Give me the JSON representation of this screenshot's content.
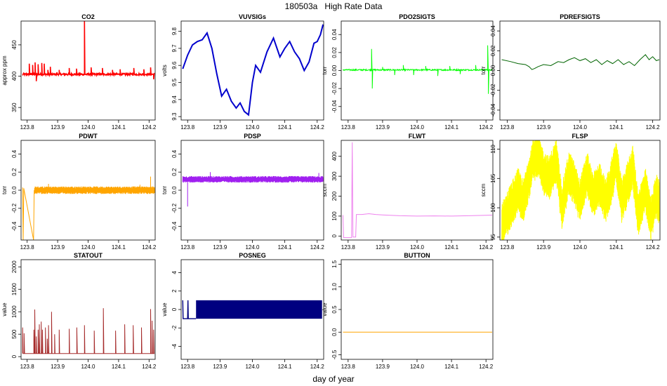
{
  "figure": {
    "title": "180503a   High Rate Data",
    "xlabel": "day of year"
  },
  "chart_data": [
    {
      "type": "line",
      "title": "CO2",
      "ylabel": "approx ppm",
      "color": "#ff0000",
      "xlim": [
        123.78,
        124.22
      ],
      "ylim": [
        330,
        488
      ],
      "xticks": [
        123.8,
        123.9,
        124.0,
        124.1,
        124.2
      ],
      "yticks": [
        350,
        400,
        450
      ],
      "pattern": "spiky",
      "base": 403,
      "noise": 1.5,
      "spikes": [
        [
          123.807,
          420
        ],
        [
          123.818,
          418
        ],
        [
          123.826,
          422
        ],
        [
          123.83,
          392
        ],
        [
          123.836,
          419
        ],
        [
          123.848,
          421
        ],
        [
          123.856,
          420
        ],
        [
          123.868,
          410
        ],
        [
          123.876,
          415
        ],
        [
          123.905,
          410
        ],
        [
          123.938,
          413
        ],
        [
          123.962,
          412
        ],
        [
          123.988,
          488
        ],
        [
          124.01,
          414
        ],
        [
          124.047,
          413
        ],
        [
          124.08,
          410
        ],
        [
          124.105,
          411
        ],
        [
          124.15,
          413
        ],
        [
          124.183,
          411
        ],
        [
          124.205,
          414
        ],
        [
          124.215,
          395
        ]
      ]
    },
    {
      "type": "line",
      "title": "VUVSIGs",
      "ylabel": "volts",
      "color": "#0000cd",
      "xlim": [
        123.78,
        124.22
      ],
      "ylim": [
        9.28,
        9.86
      ],
      "xticks": [
        123.8,
        123.9,
        124.0,
        124.1,
        124.2
      ],
      "yticks": [
        9.3,
        9.4,
        9.5,
        9.6,
        9.7,
        9.8
      ],
      "pattern": "smooth",
      "points": [
        [
          123.785,
          9.58
        ],
        [
          123.8,
          9.66
        ],
        [
          123.815,
          9.72
        ],
        [
          123.83,
          9.74
        ],
        [
          123.845,
          9.75
        ],
        [
          123.86,
          9.79
        ],
        [
          123.875,
          9.7
        ],
        [
          123.89,
          9.55
        ],
        [
          123.905,
          9.42
        ],
        [
          123.92,
          9.46
        ],
        [
          123.935,
          9.39
        ],
        [
          123.95,
          9.35
        ],
        [
          123.962,
          9.38
        ],
        [
          123.975,
          9.33
        ],
        [
          123.988,
          9.31
        ],
        [
          124.0,
          9.5
        ],
        [
          124.01,
          9.6
        ],
        [
          124.025,
          9.56
        ],
        [
          124.045,
          9.68
        ],
        [
          124.065,
          9.76
        ],
        [
          124.085,
          9.65
        ],
        [
          124.1,
          9.7
        ],
        [
          124.115,
          9.74
        ],
        [
          124.13,
          9.68
        ],
        [
          124.145,
          9.64
        ],
        [
          124.16,
          9.57
        ],
        [
          124.175,
          9.62
        ],
        [
          124.19,
          9.73
        ],
        [
          124.2,
          9.74
        ],
        [
          124.21,
          9.78
        ],
        [
          124.218,
          9.84
        ]
      ]
    },
    {
      "type": "line",
      "title": "PDO2SIGTS",
      "ylabel": "torr",
      "color": "#00ff00",
      "xlim": [
        123.78,
        124.22
      ],
      "ylim": [
        -0.055,
        0.055
      ],
      "xticks": [
        123.8,
        123.9,
        124.0,
        124.1,
        124.2
      ],
      "yticks": [
        -0.04,
        -0.02,
        0.0,
        0.02,
        0.04
      ],
      "pattern": "noise",
      "base": 0.0007,
      "noise": 0.0008,
      "spikes": [
        [
          123.868,
          0.024
        ],
        [
          123.87,
          -0.02
        ],
        [
          123.9,
          0.004
        ],
        [
          123.935,
          -0.005
        ],
        [
          123.96,
          0.006
        ],
        [
          123.99,
          -0.005
        ],
        [
          124.025,
          0.005
        ],
        [
          124.06,
          -0.006
        ],
        [
          124.095,
          0.005
        ],
        [
          124.125,
          -0.004
        ],
        [
          124.17,
          0.006
        ],
        [
          124.205,
          0.028
        ],
        [
          124.207,
          -0.026
        ]
      ]
    },
    {
      "type": "line",
      "title": "PDREFSIGTS",
      "ylabel": "torr",
      "color": "#006400",
      "xlim": [
        123.78,
        124.22
      ],
      "ylim": [
        -0.05,
        0.05
      ],
      "xticks": [
        123.8,
        123.9,
        124.0,
        124.1,
        124.2
      ],
      "yticks": [
        -0.04,
        -0.02,
        0.0,
        0.02,
        0.04
      ],
      "pattern": "smooth",
      "points": [
        [
          123.785,
          0.011
        ],
        [
          123.81,
          0.009
        ],
        [
          123.83,
          0.007
        ],
        [
          123.85,
          0.006
        ],
        [
          123.86,
          0.004
        ],
        [
          123.868,
          0.001
        ],
        [
          123.875,
          0.002
        ],
        [
          123.885,
          0.004
        ],
        [
          123.9,
          0.006
        ],
        [
          123.92,
          0.005
        ],
        [
          123.94,
          0.009
        ],
        [
          123.955,
          0.008
        ],
        [
          123.97,
          0.011
        ],
        [
          123.985,
          0.013
        ],
        [
          124.0,
          0.01
        ],
        [
          124.015,
          0.012
        ],
        [
          124.03,
          0.008
        ],
        [
          124.045,
          0.011
        ],
        [
          124.06,
          0.006
        ],
        [
          124.075,
          0.01
        ],
        [
          124.09,
          0.007
        ],
        [
          124.105,
          0.011
        ],
        [
          124.12,
          0.006
        ],
        [
          124.135,
          0.009
        ],
        [
          124.15,
          0.005
        ],
        [
          124.165,
          0.011
        ],
        [
          124.18,
          0.016
        ],
        [
          124.19,
          0.011
        ],
        [
          124.2,
          0.014
        ],
        [
          124.21,
          0.01
        ],
        [
          124.218,
          0.011
        ]
      ]
    },
    {
      "type": "line",
      "title": "PDWT",
      "ylabel": "torr",
      "color": "#ffa500",
      "xlim": [
        123.78,
        124.22
      ],
      "ylim": [
        -0.55,
        0.55
      ],
      "xticks": [
        123.8,
        123.9,
        124.0,
        124.1,
        124.2
      ],
      "yticks": [
        -0.4,
        -0.2,
        0.0,
        0.2,
        0.4
      ],
      "pattern": "band",
      "base": 0.0,
      "noise": 0.035,
      "x0": 123.824,
      "prefix": [
        [
          123.785,
          0.03
        ],
        [
          123.787,
          -0.55
        ],
        [
          123.789,
          0.02
        ],
        [
          123.821,
          -0.55
        ],
        [
          123.823,
          0.0
        ]
      ],
      "spikes": [
        [
          123.87,
          0.07
        ],
        [
          124.17,
          0.06
        ],
        [
          124.205,
          0.15
        ]
      ]
    },
    {
      "type": "line",
      "title": "PDSP",
      "ylabel": "torr",
      "color": "#a020f0",
      "xlim": [
        123.78,
        124.22
      ],
      "ylim": [
        -0.55,
        0.55
      ],
      "xticks": [
        123.8,
        123.9,
        124.0,
        124.1,
        124.2
      ],
      "yticks": [
        -0.4,
        -0.2,
        0.0,
        0.2,
        0.4
      ],
      "pattern": "band",
      "base": 0.12,
      "noise": 0.03,
      "x0": 123.785,
      "prefix": [],
      "spikes": [
        [
          123.8,
          -0.18
        ],
        [
          123.87,
          0.2
        ],
        [
          124.205,
          0.19
        ]
      ]
    },
    {
      "type": "line",
      "title": "FLWT",
      "ylabel": "sccm",
      "color": "#ee82ee",
      "xlim": [
        123.78,
        124.22
      ],
      "ylim": [
        -20,
        480
      ],
      "xticks": [
        123.8,
        123.9,
        124.0,
        124.1,
        124.2
      ],
      "yticks": [
        0,
        100,
        200,
        300,
        400
      ],
      "pattern": "smooth",
      "points": [
        [
          123.785,
          105
        ],
        [
          123.787,
          -8
        ],
        [
          123.81,
          -8
        ],
        [
          123.812,
          470
        ],
        [
          123.814,
          -5
        ],
        [
          123.822,
          -5
        ],
        [
          123.824,
          108
        ],
        [
          123.84,
          108
        ],
        [
          123.86,
          112
        ],
        [
          123.88,
          108
        ],
        [
          123.9,
          106
        ],
        [
          123.95,
          102
        ],
        [
          124.0,
          100
        ],
        [
          124.05,
          101
        ],
        [
          124.1,
          100
        ],
        [
          124.15,
          102
        ],
        [
          124.2,
          104
        ],
        [
          124.218,
          105
        ]
      ]
    },
    {
      "type": "line",
      "title": "FLSP",
      "ylabel": "sccm",
      "color": "#ffff00",
      "xlim": [
        123.78,
        124.22
      ],
      "ylim": [
        94.5,
        111.5
      ],
      "xticks": [
        123.8,
        123.9,
        124.0,
        124.1,
        124.2
      ],
      "yticks": [
        95,
        100,
        105,
        110
      ],
      "pattern": "oscband",
      "points": [
        [
          123.785,
          97
        ],
        [
          123.83,
          103
        ],
        [
          123.845,
          101
        ],
        [
          123.87,
          108
        ],
        [
          123.885,
          109
        ],
        [
          123.9,
          106
        ],
        [
          123.915,
          105
        ],
        [
          123.935,
          108
        ],
        [
          123.95,
          100
        ],
        [
          123.97,
          106
        ],
        [
          123.985,
          104
        ],
        [
          124.0,
          101
        ],
        [
          124.02,
          106
        ],
        [
          124.035,
          102
        ],
        [
          124.055,
          104
        ],
        [
          124.07,
          101
        ],
        [
          124.085,
          104
        ],
        [
          124.1,
          108
        ],
        [
          124.115,
          101
        ],
        [
          124.13,
          104
        ],
        [
          124.145,
          107
        ],
        [
          124.16,
          99
        ],
        [
          124.18,
          103
        ],
        [
          124.195,
          98
        ],
        [
          124.21,
          102
        ],
        [
          124.218,
          101
        ]
      ],
      "amp": 3.5
    },
    {
      "type": "line",
      "title": "STATOUT",
      "ylabel": "value",
      "color": "#a52a2a",
      "xlim": [
        123.78,
        124.22
      ],
      "ylim": [
        -60,
        2160
      ],
      "xticks": [
        123.8,
        123.9,
        124.0,
        124.1,
        124.2
      ],
      "yticks": [
        0,
        500,
        1000,
        1500,
        2000
      ],
      "pattern": "pulses",
      "base": 70,
      "spikes": [
        [
          123.785,
          650
        ],
        [
          123.79,
          520
        ],
        [
          123.822,
          600
        ],
        [
          123.825,
          1050
        ],
        [
          123.83,
          450
        ],
        [
          123.836,
          600
        ],
        [
          123.84,
          720
        ],
        [
          123.846,
          780
        ],
        [
          123.85,
          600
        ],
        [
          123.86,
          650
        ],
        [
          123.866,
          400
        ],
        [
          123.87,
          700
        ],
        [
          123.88,
          1000
        ],
        [
          123.89,
          500
        ],
        [
          123.905,
          600
        ],
        [
          123.938,
          620
        ],
        [
          123.963,
          650
        ],
        [
          123.988,
          700
        ],
        [
          124.02,
          580
        ],
        [
          124.05,
          1080
        ],
        [
          124.09,
          580
        ],
        [
          124.12,
          720
        ],
        [
          124.148,
          700
        ],
        [
          124.175,
          650
        ],
        [
          124.205,
          1060
        ],
        [
          124.21,
          800
        ],
        [
          124.215,
          600
        ]
      ]
    },
    {
      "type": "line",
      "title": "POSNEG",
      "ylabel": "value",
      "color": "#000080",
      "xlim": [
        123.78,
        124.22
      ],
      "ylim": [
        -5.4,
        5.4
      ],
      "xticks": [
        123.8,
        123.9,
        124.0,
        124.1,
        124.2
      ],
      "yticks": [
        -4,
        -2,
        0,
        2,
        4
      ],
      "pattern": "block",
      "top": 1,
      "bottom": -1,
      "blockStart": 123.826,
      "blockEnd": 124.215,
      "pre": [
        [
          123.785,
          1
        ],
        [
          123.786,
          -1
        ],
        [
          123.8,
          -1
        ],
        [
          123.801,
          1
        ],
        [
          123.802,
          -1
        ],
        [
          123.826,
          -1
        ]
      ]
    },
    {
      "type": "line",
      "title": "BUTTON",
      "ylabel": "value",
      "color": "#ffa500",
      "xlim": [
        123.78,
        124.22
      ],
      "ylim": [
        -0.6,
        1.6
      ],
      "xticks": [
        123.8,
        123.9,
        124.0,
        124.1,
        124.2
      ],
      "yticks": [
        -0.5,
        0.0,
        0.5,
        1.0,
        1.5
      ],
      "pattern": "smooth",
      "points": [
        [
          123.785,
          0
        ],
        [
          124.218,
          0
        ]
      ]
    }
  ]
}
